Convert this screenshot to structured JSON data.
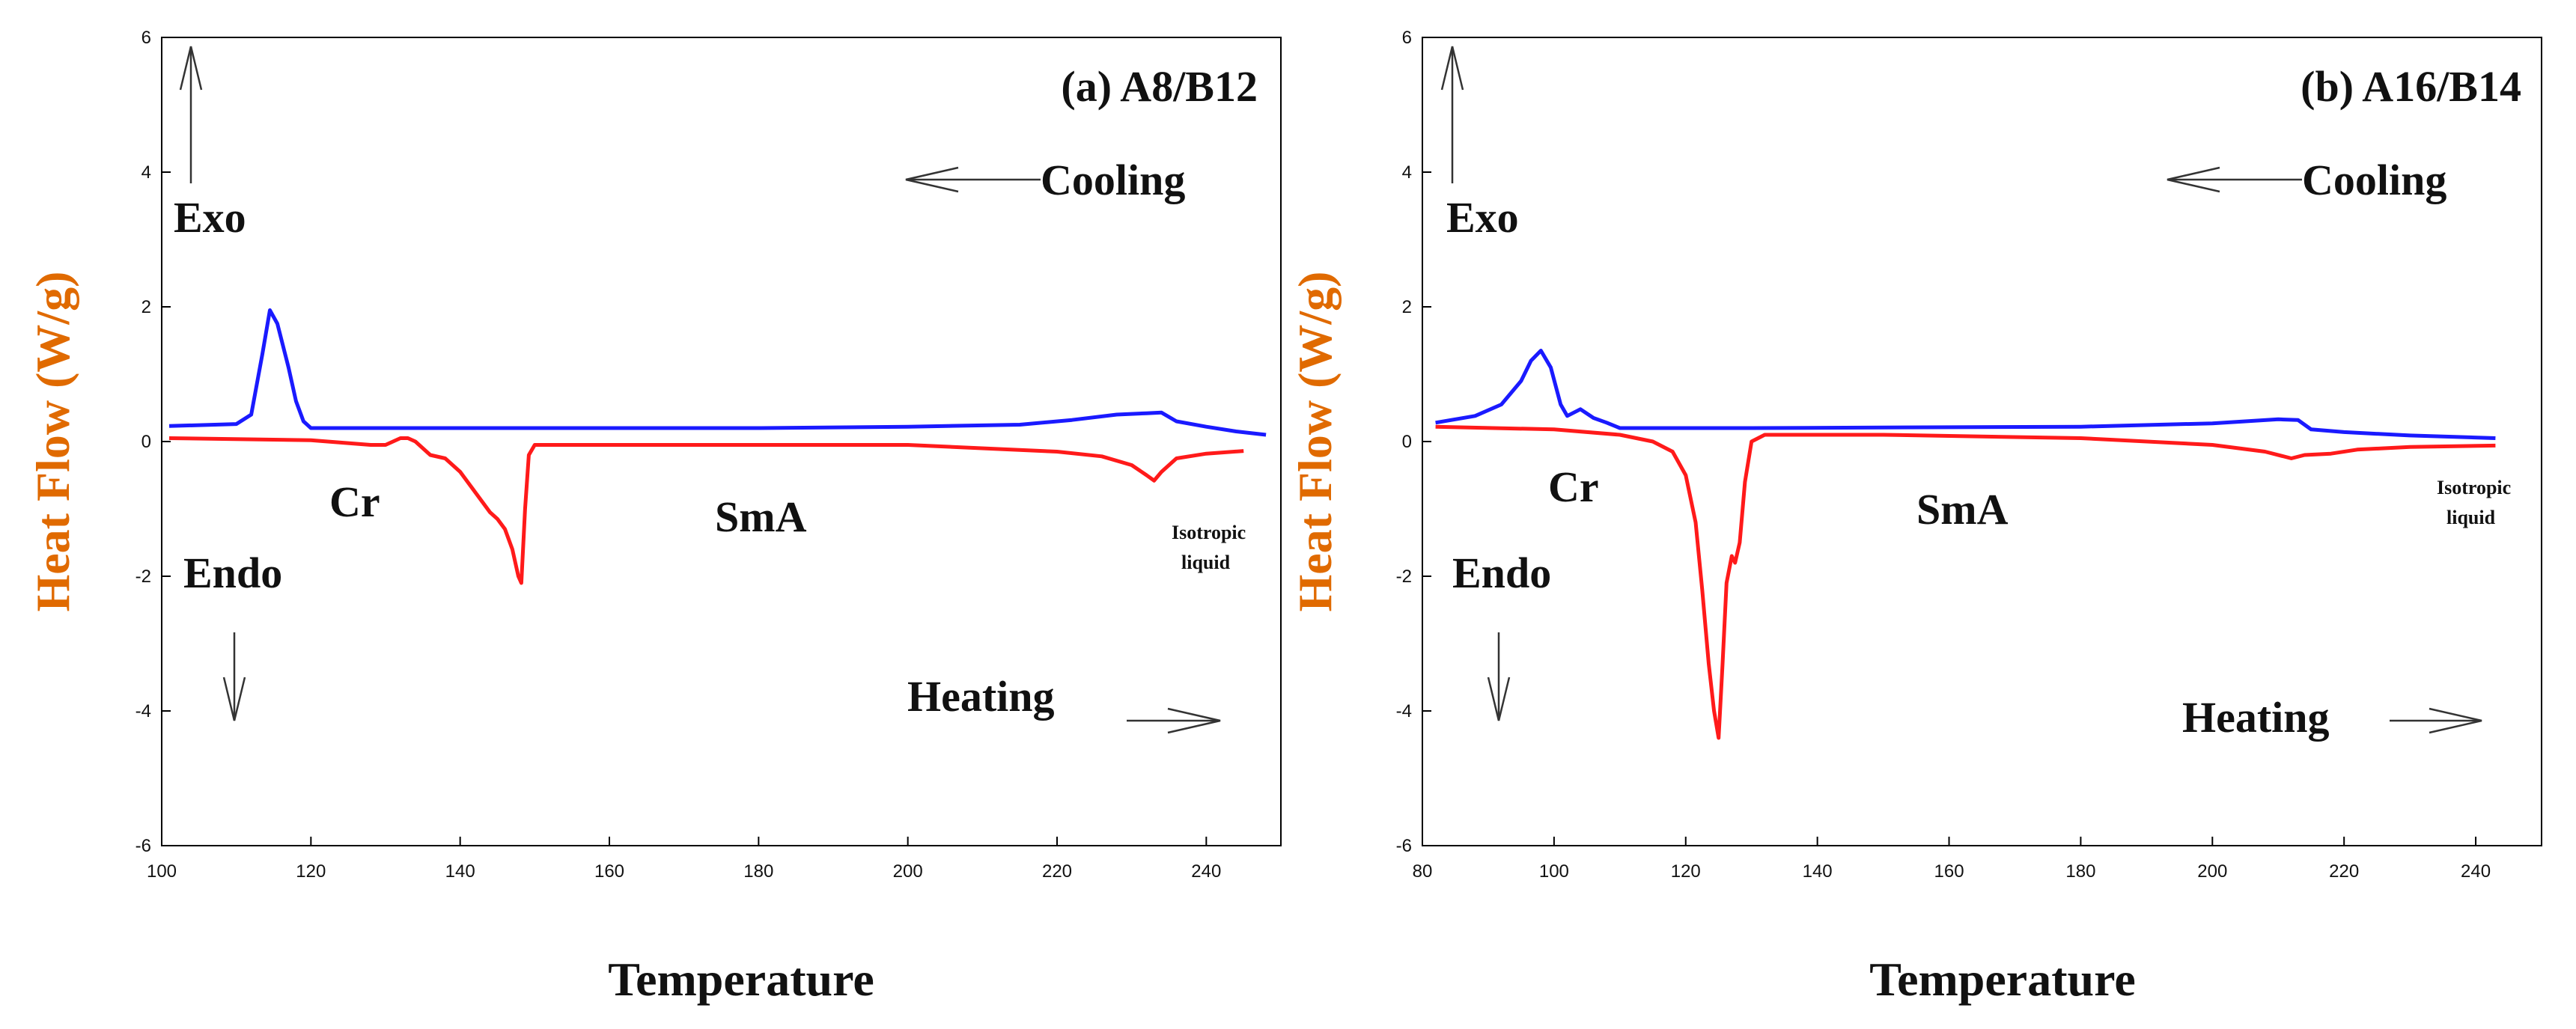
{
  "chart_data": [
    {
      "type": "line",
      "title": "(a)  A8/B12",
      "xlabel": "Temperature",
      "ylabel": "Heat Flow (W/g)",
      "xlim": [
        100,
        250
      ],
      "ylim": [
        -6,
        6
      ],
      "xticks": [
        100,
        120,
        140,
        160,
        180,
        200,
        220,
        240
      ],
      "yticks": [
        6,
        4,
        2,
        0,
        -2,
        -4,
        -6
      ],
      "grid": false,
      "series": [
        {
          "name": "Cooling",
          "color": "#1a1aff",
          "x": [
            101,
            110,
            112,
            113.5,
            114.5,
            115.5,
            117,
            118,
            119,
            120,
            140,
            180,
            200,
            215,
            222,
            228,
            232,
            234,
            236,
            240,
            244,
            248
          ],
          "y": [
            0.23,
            0.26,
            0.4,
            1.3,
            1.95,
            1.75,
            1.1,
            0.6,
            0.3,
            0.2,
            0.2,
            0.2,
            0.22,
            0.25,
            0.32,
            0.4,
            0.42,
            0.43,
            0.3,
            0.22,
            0.15,
            0.1
          ]
        },
        {
          "name": "Heating",
          "color": "#ff1a1a",
          "x": [
            101,
            120,
            128,
            130,
            132,
            133,
            134,
            136,
            138,
            140,
            142,
            144,
            145,
            146,
            147,
            147.8,
            148.2,
            148.7,
            149.2,
            150,
            170,
            200,
            220,
            226,
            230,
            232,
            233,
            234,
            236,
            240,
            245
          ],
          "y": [
            0.05,
            0.02,
            -0.05,
            -0.05,
            0.05,
            0.05,
            0.0,
            -0.2,
            -0.25,
            -0.45,
            -0.75,
            -1.05,
            -1.15,
            -1.3,
            -1.6,
            -2.0,
            -2.1,
            -1.0,
            -0.2,
            -0.05,
            -0.05,
            -0.05,
            -0.15,
            -0.22,
            -0.35,
            -0.5,
            -0.58,
            -0.45,
            -0.25,
            -0.18,
            -0.14
          ]
        }
      ],
      "annotations": {
        "cooling": "Cooling",
        "heating": "Heating",
        "exo": "Exo",
        "endo": "Endo",
        "phase_cr": "Cr",
        "phase_sma": "SmA",
        "iso_1": "Isotropic",
        "iso_2": "liquid"
      }
    },
    {
      "type": "line",
      "title": "(b)  A16/B14",
      "xlabel": "Temperature",
      "ylabel": "Heat Flow (W/g)",
      "xlim": [
        80,
        250
      ],
      "ylim": [
        -6,
        6
      ],
      "xticks": [
        80,
        100,
        120,
        140,
        160,
        180,
        200,
        220,
        240
      ],
      "yticks": [
        6,
        4,
        2,
        0,
        -2,
        -4,
        -6
      ],
      "grid": false,
      "series": [
        {
          "name": "Cooling",
          "color": "#1a1aff",
          "x": [
            82,
            88,
            92,
            95,
            96.5,
            98,
            99.5,
            101,
            102,
            104,
            106,
            108,
            110,
            130,
            180,
            200,
            210,
            213,
            215,
            220,
            230,
            243
          ],
          "y": [
            0.28,
            0.38,
            0.55,
            0.9,
            1.2,
            1.35,
            1.1,
            0.55,
            0.38,
            0.48,
            0.35,
            0.28,
            0.2,
            0.2,
            0.22,
            0.27,
            0.33,
            0.32,
            0.18,
            0.14,
            0.09,
            0.05
          ]
        },
        {
          "name": "Heating",
          "color": "#ff1a1a",
          "x": [
            82,
            100,
            110,
            115,
            118,
            120,
            121.5,
            122.5,
            123.5,
            124.3,
            125,
            125.6,
            126.2,
            127,
            127.5,
            128.2,
            129,
            130,
            132,
            150,
            180,
            200,
            208,
            212,
            214,
            218,
            222,
            230,
            243
          ],
          "y": [
            0.22,
            0.18,
            0.1,
            0.0,
            -0.15,
            -0.5,
            -1.2,
            -2.2,
            -3.3,
            -4.0,
            -4.4,
            -3.3,
            -2.1,
            -1.7,
            -1.8,
            -1.5,
            -0.6,
            0.0,
            0.1,
            0.1,
            0.05,
            -0.05,
            -0.15,
            -0.25,
            -0.2,
            -0.18,
            -0.12,
            -0.08,
            -0.06
          ]
        }
      ],
      "annotations": {
        "cooling": "Cooling",
        "heating": "Heating",
        "exo": "Exo",
        "endo": "Endo",
        "phase_cr": "Cr",
        "phase_sma": "SmA",
        "iso_1": "Isotropic",
        "iso_2": "liquid"
      }
    }
  ]
}
